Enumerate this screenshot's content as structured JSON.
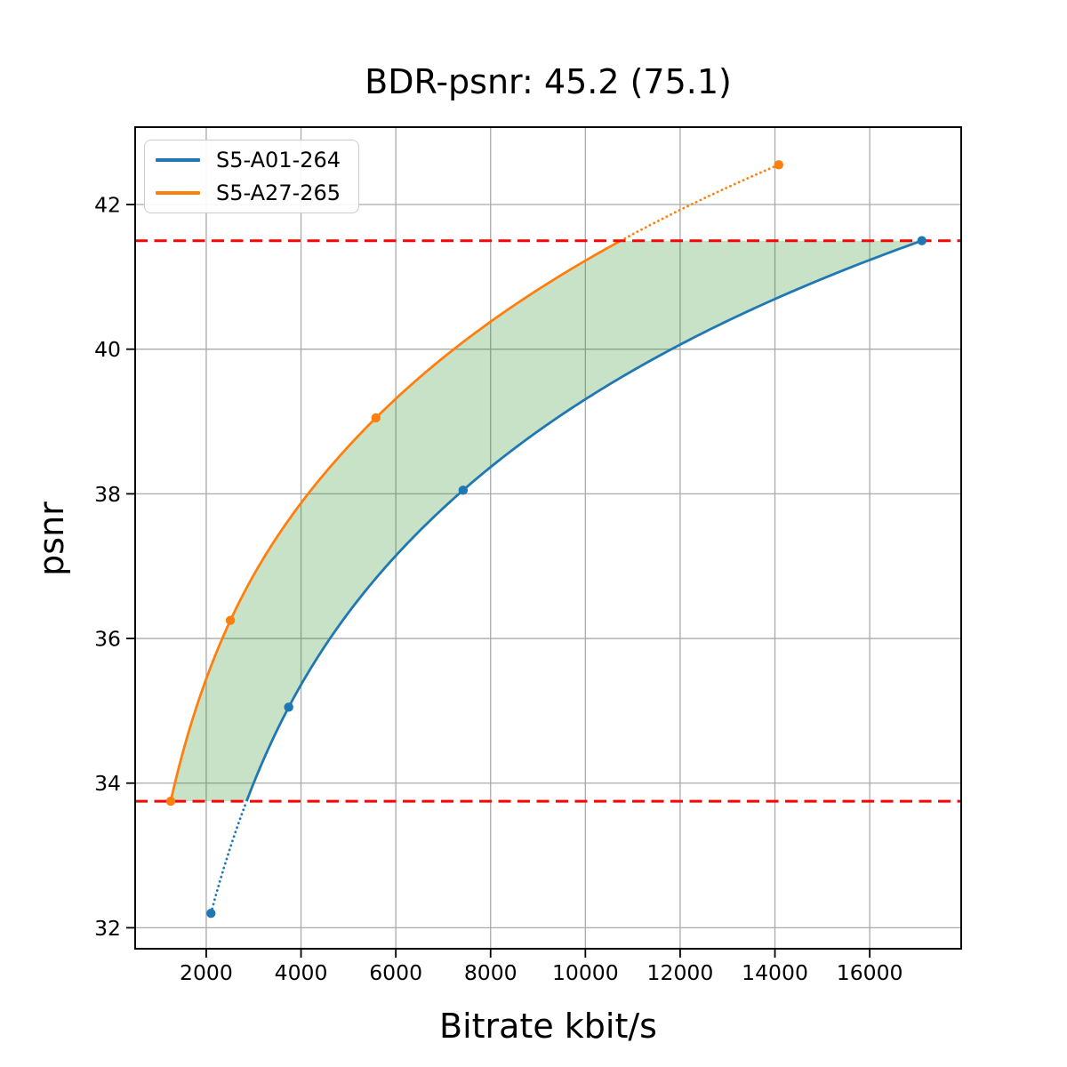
{
  "chart_data": {
    "type": "line",
    "title": "BDR-psnr: 45.2 (75.1)",
    "xlabel": "Bitrate kbit/s",
    "ylabel": "psnr",
    "xlim": [
      500,
      17930
    ],
    "ylim": [
      31.71,
      43.07
    ],
    "x_ticks": [
      2000,
      4000,
      6000,
      8000,
      10000,
      12000,
      14000,
      16000
    ],
    "y_ticks": [
      32,
      34,
      36,
      38,
      40,
      42
    ],
    "grid": true,
    "grid_color": "#aaaaaa",
    "legend_position": "upper left",
    "series": [
      {
        "name": "S5-A01-264",
        "color": "#1f77b4",
        "points": [
          [
            2100,
            32.2
          ],
          [
            3740,
            35.05
          ],
          [
            7420,
            38.05
          ],
          [
            17100,
            41.5
          ]
        ]
      },
      {
        "name": "S5-A27-265",
        "color": "#ff7f0e",
        "points": [
          [
            1250,
            33.75
          ],
          [
            2510,
            36.25
          ],
          [
            5580,
            39.05
          ],
          [
            14080,
            42.55
          ]
        ]
      }
    ],
    "overlap_interval": {
      "psnr_low": 33.75,
      "psnr_high": 41.5
    },
    "hlines": [
      {
        "y": 41.5,
        "color": "#ff0000",
        "style": "dashed"
      },
      {
        "y": 33.75,
        "color": "#ff0000",
        "style": "dashed"
      }
    ],
    "shaded_region": {
      "color": "#228b22",
      "opacity": 0.25
    }
  }
}
